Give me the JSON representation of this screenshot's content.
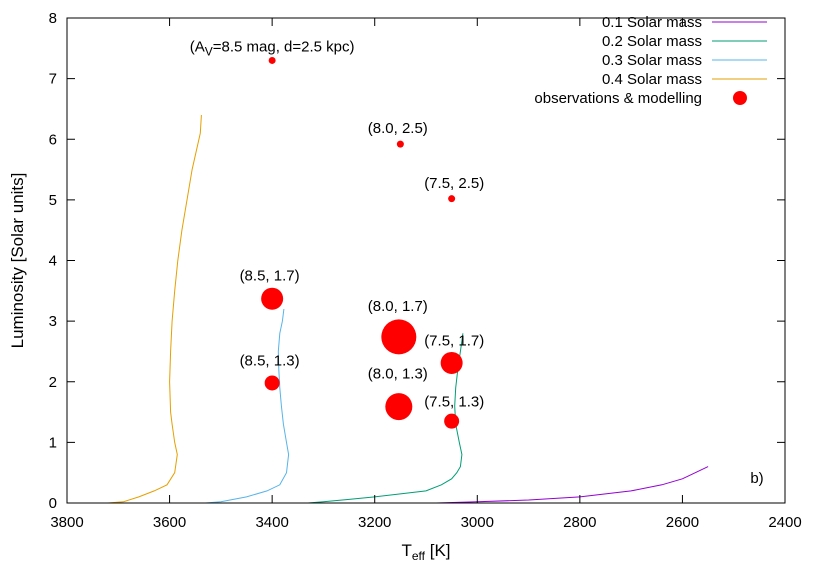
{
  "chart_data": {
    "type": "scatter",
    "title": "",
    "xlabel": "T",
    "xlabel_sub": "eff",
    "xlabel_unit": " [K]",
    "ylabel": "Luminosity [Solar units]",
    "xlim": [
      3800,
      2400
    ],
    "ylim": [
      0,
      8
    ],
    "x_ticks": [
      3800,
      3600,
      3400,
      3200,
      3000,
      2800,
      2600,
      2400
    ],
    "y_ticks": [
      0,
      1,
      2,
      3,
      4,
      5,
      6,
      7,
      8
    ],
    "grid": false,
    "legend_position": "top-right",
    "panel_label": "b)",
    "annotation": {
      "prefix": "(A",
      "sub": "V",
      "suffix": "=8.5 mag, d=2.5 kpc)",
      "x": 3400,
      "y": 7.3
    },
    "series": [
      {
        "name": "0.1 Solar mass",
        "color": "#9400d3",
        "kind": "line",
        "points": [
          [
            3080,
            0.0
          ],
          [
            3000,
            0.02
          ],
          [
            2900,
            0.05
          ],
          [
            2800,
            0.1
          ],
          [
            2700,
            0.2
          ],
          [
            2640,
            0.3
          ],
          [
            2600,
            0.4
          ],
          [
            2575,
            0.5
          ],
          [
            2550,
            0.6
          ]
        ]
      },
      {
        "name": "0.2 Solar mass",
        "color": "#009e73",
        "kind": "line",
        "points": [
          [
            3330,
            0.0
          ],
          [
            3300,
            0.02
          ],
          [
            3250,
            0.06
          ],
          [
            3200,
            0.1
          ],
          [
            3150,
            0.15
          ],
          [
            3100,
            0.2
          ],
          [
            3070,
            0.3
          ],
          [
            3050,
            0.4
          ],
          [
            3040,
            0.5
          ],
          [
            3033,
            0.6
          ],
          [
            3030,
            0.8
          ],
          [
            3035,
            1.0
          ],
          [
            3042,
            1.3
          ],
          [
            3044,
            1.6
          ],
          [
            3042,
            1.9
          ],
          [
            3038,
            2.2
          ],
          [
            3033,
            2.5
          ],
          [
            3028,
            2.8
          ]
        ]
      },
      {
        "name": "0.3 Solar mass",
        "color": "#56b4e9",
        "kind": "line",
        "points": [
          [
            3530,
            0.0
          ],
          [
            3500,
            0.02
          ],
          [
            3450,
            0.1
          ],
          [
            3410,
            0.2
          ],
          [
            3385,
            0.3
          ],
          [
            3372,
            0.5
          ],
          [
            3368,
            0.8
          ],
          [
            3372,
            1.0
          ],
          [
            3378,
            1.3
          ],
          [
            3382,
            1.6
          ],
          [
            3385,
            1.9
          ],
          [
            3387,
            2.2
          ],
          [
            3388,
            2.5
          ],
          [
            3385,
            2.8
          ],
          [
            3380,
            3.0
          ],
          [
            3377,
            3.2
          ]
        ]
      },
      {
        "name": "0.4 Solar mass",
        "color": "#e69f00",
        "kind": "line",
        "points": [
          [
            3720,
            0.0
          ],
          [
            3690,
            0.02
          ],
          [
            3660,
            0.1
          ],
          [
            3630,
            0.2
          ],
          [
            3605,
            0.3
          ],
          [
            3590,
            0.5
          ],
          [
            3585,
            0.8
          ],
          [
            3590,
            1.0
          ],
          [
            3595,
            1.3
          ],
          [
            3598,
            1.5
          ],
          [
            3600,
            2.0
          ],
          [
            3598,
            2.5
          ],
          [
            3595,
            3.0
          ],
          [
            3590,
            3.5
          ],
          [
            3584,
            4.0
          ],
          [
            3576,
            4.5
          ],
          [
            3566,
            5.0
          ],
          [
            3556,
            5.5
          ],
          [
            3548,
            5.8
          ],
          [
            3540,
            6.1
          ],
          [
            3538,
            6.4
          ]
        ]
      },
      {
        "name": "observations & modelling",
        "color": "#ff0000",
        "kind": "points",
        "points": [
          {
            "x": 3400,
            "y": 7.3,
            "r": 3.5,
            "label": ""
          },
          {
            "x": 3150,
            "y": 5.92,
            "r": 3.5,
            "label": "(8.0, 2.5)",
            "lx": 3155,
            "ly": 6.1
          },
          {
            "x": 3050,
            "y": 5.02,
            "r": 3.5,
            "label": "(7.5, 2.5)",
            "lx": 3045,
            "ly": 5.2
          },
          {
            "x": 3400,
            "y": 3.37,
            "r": 11,
            "label": "(8.5, 1.7)",
            "lx": 3405,
            "ly": 3.67
          },
          {
            "x": 3153,
            "y": 2.74,
            "r": 17.5,
            "label": "(8.0, 1.7)",
            "lx": 3155,
            "ly": 3.17
          },
          {
            "x": 3050,
            "y": 2.31,
            "r": 11,
            "label": "(7.5, 1.7)",
            "lx": 3045,
            "ly": 2.6
          },
          {
            "x": 3400,
            "y": 1.98,
            "r": 7.5,
            "label": "(8.5, 1.3)",
            "lx": 3405,
            "ly": 2.27
          },
          {
            "x": 3153,
            "y": 1.59,
            "r": 13.5,
            "label": "(8.0, 1.3)",
            "lx": 3155,
            "ly": 2.05
          },
          {
            "x": 3050,
            "y": 1.35,
            "r": 7.5,
            "label": "(7.5, 1.3)",
            "lx": 3045,
            "ly": 1.59
          }
        ]
      }
    ]
  }
}
